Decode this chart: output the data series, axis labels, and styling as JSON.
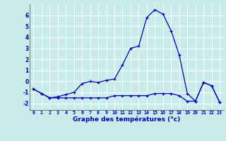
{
  "xlabel": "Graphe des températures (°c)",
  "background_color": "#c8ecec",
  "grid_color": "#ffffff",
  "line_color": "#0000bb",
  "x_ticks": [
    0,
    1,
    2,
    3,
    4,
    5,
    6,
    7,
    8,
    9,
    10,
    11,
    12,
    13,
    14,
    15,
    16,
    17,
    18,
    19,
    20,
    21,
    22,
    23
  ],
  "ylim": [
    -2.6,
    7.0
  ],
  "xlim": [
    -0.5,
    23.5
  ],
  "series1_x": [
    0,
    1,
    2,
    3,
    4,
    5,
    6,
    7,
    8,
    9,
    10,
    11,
    12,
    13,
    14,
    15,
    16,
    17,
    18,
    19,
    20,
    21,
    22,
    23
  ],
  "series1_y": [
    -0.7,
    -1.1,
    -1.5,
    -1.4,
    -1.2,
    -1.0,
    -0.2,
    0.0,
    -0.1,
    0.1,
    0.2,
    1.5,
    3.0,
    3.2,
    5.8,
    6.5,
    6.1,
    4.6,
    2.4,
    -1.1,
    -1.8,
    -0.1,
    -0.4,
    -1.9
  ],
  "series2_x": [
    0,
    1,
    2,
    3,
    4,
    5,
    6,
    7,
    8,
    9,
    10,
    11,
    12,
    13,
    14,
    15,
    16,
    17,
    18,
    19,
    20,
    21,
    22,
    23
  ],
  "series2_y": [
    -0.7,
    -1.1,
    -1.5,
    -1.5,
    -1.5,
    -1.5,
    -1.5,
    -1.5,
    -1.5,
    -1.5,
    -1.3,
    -1.3,
    -1.3,
    -1.3,
    -1.3,
    -1.1,
    -1.1,
    -1.1,
    -1.3,
    -1.8,
    -1.8,
    -0.1,
    -0.4,
    -1.9
  ],
  "yticks": [
    -2,
    -1,
    0,
    1,
    2,
    3,
    4,
    5,
    6
  ],
  "ylabel_fontsize": 6.0,
  "xlabel_fontsize": 6.5,
  "xtick_fontsize": 4.8,
  "ytick_fontsize": 5.5
}
